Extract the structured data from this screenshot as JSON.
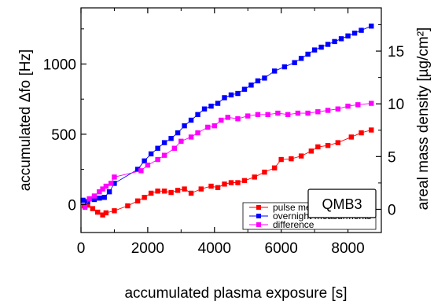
{
  "chart_data": {
    "type": "scatter",
    "title": "",
    "xlabel": "accumulated plasma exposure [s]",
    "ylabel": "accumulated Δfo [Hz]",
    "y2label": "areal mass density [µg/cm²]",
    "annotation": "QMB3",
    "xlim": [
      0,
      9000
    ],
    "ylim": [
      -200,
      1400
    ],
    "y2lim": [
      -2.2,
      19.1
    ],
    "x_ticks": [
      0,
      2000,
      4000,
      6000,
      8000
    ],
    "y_ticks": [
      0,
      500,
      1000
    ],
    "y2_ticks": [
      0,
      5,
      10,
      15
    ],
    "legend": {
      "position": "bottom-right"
    },
    "series": [
      {
        "name": "pulse measurements",
        "color": "#ff0000",
        "marker": "square",
        "x": [
          100,
          200,
          350,
          500,
          650,
          750,
          1000,
          1400,
          1700,
          1900,
          2100,
          2300,
          2500,
          2700,
          2900,
          3100,
          3300,
          3600,
          3900,
          4100,
          4300,
          4500,
          4700,
          4900,
          5200,
          5500,
          5800,
          6000,
          6300,
          6600,
          6900,
          7100,
          7400,
          7700,
          8100,
          8400,
          8700
        ],
        "y": [
          -10,
          -5,
          -30,
          -55,
          -75,
          -60,
          -45,
          -10,
          25,
          50,
          80,
          95,
          95,
          85,
          100,
          110,
          80,
          110,
          130,
          120,
          145,
          155,
          155,
          170,
          195,
          230,
          260,
          320,
          325,
          345,
          380,
          410,
          420,
          440,
          480,
          510,
          530
        ]
      },
      {
        "name": "overnight measurments",
        "color": "#0000ff",
        "marker": "square",
        "x": [
          60,
          200,
          300,
          400,
          550,
          700,
          850,
          1000,
          1700,
          1900,
          2100,
          2300,
          2500,
          2700,
          2900,
          3100,
          3300,
          3500,
          3700,
          3900,
          4100,
          4300,
          4500,
          4700,
          4900,
          5100,
          5300,
          5500,
          5800,
          6100,
          6400,
          6600,
          6800,
          7000,
          7200,
          7400,
          7600,
          7800,
          8000,
          8200,
          8400,
          8700
        ],
        "y": [
          30,
          20,
          40,
          35,
          45,
          50,
          90,
          150,
          250,
          310,
          360,
          400,
          440,
          470,
          510,
          560,
          600,
          640,
          680,
          700,
          720,
          760,
          780,
          790,
          820,
          850,
          880,
          900,
          950,
          980,
          1010,
          1040,
          1070,
          1100,
          1120,
          1140,
          1160,
          1180,
          1200,
          1220,
          1240,
          1270
        ]
      },
      {
        "name": "difference",
        "color": "#ff00ff",
        "marker": "square",
        "x": [
          120,
          250,
          400,
          550,
          650,
          750,
          900,
          1000,
          1800,
          2000,
          2300,
          2500,
          2800,
          3000,
          3300,
          3500,
          3800,
          4000,
          4200,
          4400,
          4700,
          5000,
          5300,
          5600,
          5900,
          6200,
          6500,
          6800,
          7100,
          7400,
          7700,
          8000,
          8300,
          8700
        ],
        "y": [
          -20,
          40,
          60,
          90,
          110,
          130,
          150,
          195,
          240,
          280,
          320,
          350,
          400,
          450,
          480,
          510,
          550,
          560,
          600,
          620,
          610,
          630,
          640,
          640,
          650,
          640,
          650,
          650,
          660,
          670,
          680,
          700,
          710,
          720
        ]
      }
    ]
  }
}
